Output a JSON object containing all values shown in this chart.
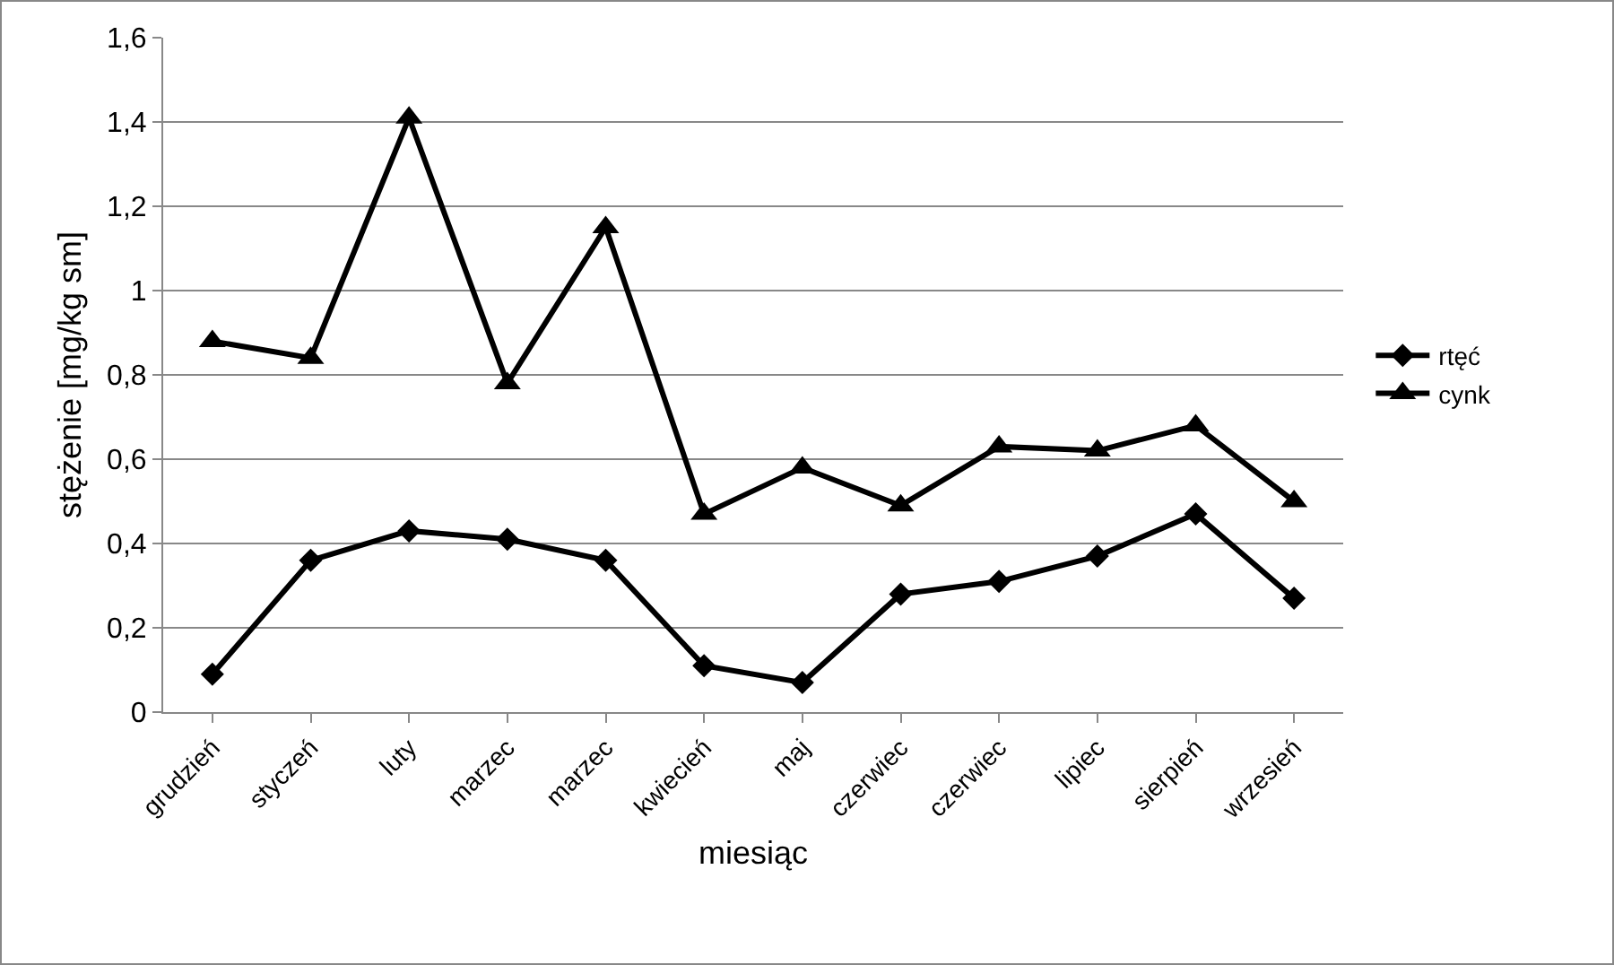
{
  "chart_data": {
    "type": "line",
    "xlabel": "miesiąc",
    "ylabel": "stężenie [mg/kg sm]",
    "categories": [
      "grudzień",
      "styczeń",
      "luty",
      "marzec",
      "marzec",
      "kwiecień",
      "maj",
      "czerwiec",
      "czerwiec",
      "lipiec",
      "sierpień",
      "wrzesień"
    ],
    "series": [
      {
        "name": "rtęć",
        "color": "#000000",
        "marker": "diamond",
        "values": [
          0.09,
          0.36,
          0.43,
          0.41,
          0.36,
          0.11,
          0.07,
          0.28,
          0.31,
          0.37,
          0.47,
          0.27
        ]
      },
      {
        "name": "cynk",
        "color": "#000000",
        "marker": "triangle",
        "values": [
          0.88,
          0.84,
          1.41,
          0.78,
          1.15,
          0.47,
          0.58,
          0.49,
          0.63,
          0.62,
          0.68,
          0.5
        ]
      }
    ],
    "ylim": [
      0,
      1.6
    ],
    "yticks": [
      {
        "value": 0,
        "label": "0"
      },
      {
        "value": 0.2,
        "label": "0,2"
      },
      {
        "value": 0.4,
        "label": "0,4"
      },
      {
        "value": 0.6,
        "label": "0,6"
      },
      {
        "value": 0.8,
        "label": "0,8"
      },
      {
        "value": 1,
        "label": "1"
      },
      {
        "value": 1.2,
        "label": "1,2"
      },
      {
        "value": 1.4,
        "label": "1,4"
      },
      {
        "value": 1.6,
        "label": "1,6"
      }
    ],
    "grid": "y",
    "legend": "right",
    "line_style": "solid"
  }
}
